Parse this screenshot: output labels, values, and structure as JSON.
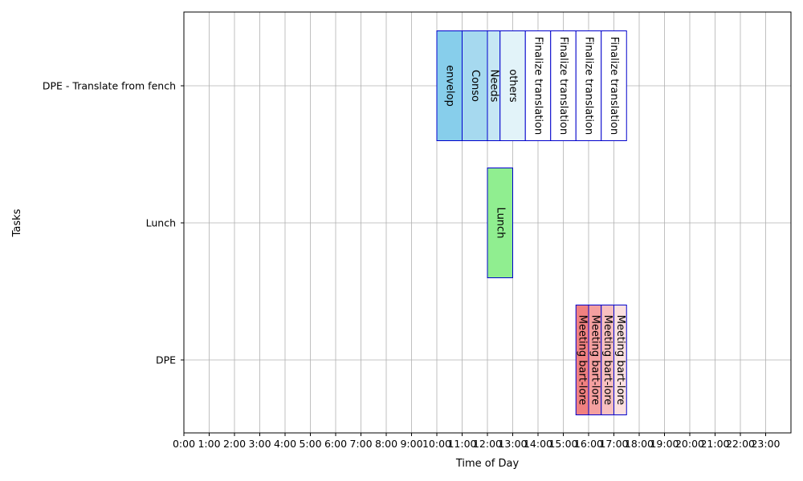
{
  "chart_data": {
    "type": "bar",
    "orientation": "horizontal-timeline",
    "xlabel": "Time of Day",
    "ylabel": "Tasks",
    "xlim": [
      0,
      24
    ],
    "x_ticks": [
      "0:00",
      "1:00",
      "2:00",
      "3:00",
      "4:00",
      "5:00",
      "6:00",
      "7:00",
      "8:00",
      "9:00",
      "10:00",
      "11:00",
      "12:00",
      "13:00",
      "14:00",
      "15:00",
      "16:00",
      "17:00",
      "18:00",
      "19:00",
      "20:00",
      "21:00",
      "22:00",
      "23:00"
    ],
    "y_ticks": [
      "DPE",
      "Lunch",
      "DPE - Translate from fench"
    ],
    "grid": true,
    "bars": [
      {
        "task": "DPE - Translate from fench",
        "start": 10.0,
        "end": 11.0,
        "label": "envelop",
        "color": "#87ceeb"
      },
      {
        "task": "DPE - Translate from fench",
        "start": 11.0,
        "end": 12.0,
        "label": "Conso",
        "color": "#a6d9ef"
      },
      {
        "task": "DPE - Translate from fench",
        "start": 12.0,
        "end": 12.5,
        "label": "Needs",
        "color": "#c6e7f4"
      },
      {
        "task": "DPE - Translate from fench",
        "start": 12.5,
        "end": 13.5,
        "label": "others",
        "color": "#e2f3f9"
      },
      {
        "task": "DPE - Translate from fench",
        "start": 13.5,
        "end": 14.5,
        "label": "Finalize translation",
        "color": "#ffffff"
      },
      {
        "task": "DPE - Translate from fench",
        "start": 14.5,
        "end": 15.5,
        "label": "Finalize translation",
        "color": "#ffffff"
      },
      {
        "task": "DPE - Translate from fench",
        "start": 15.5,
        "end": 16.5,
        "label": "Finalize translation",
        "color": "#ffffff"
      },
      {
        "task": "DPE - Translate from fench",
        "start": 16.5,
        "end": 17.5,
        "label": "Finalize translation",
        "color": "#ffffff"
      },
      {
        "task": "Lunch",
        "start": 12.0,
        "end": 13.0,
        "label": "Lunch",
        "color": "#90ee90"
      },
      {
        "task": "DPE",
        "start": 15.5,
        "end": 16.0,
        "label": "Meeting bart-lore",
        "color": "#f08080"
      },
      {
        "task": "DPE",
        "start": 16.0,
        "end": 16.5,
        "label": "Meeting bart-lore",
        "color": "#f4a0a0"
      },
      {
        "task": "DPE",
        "start": 16.5,
        "end": 17.0,
        "label": "Meeting bart-lore",
        "color": "#f8c0c0"
      },
      {
        "task": "DPE",
        "start": 17.0,
        "end": 17.5,
        "label": "Meeting bart-lore",
        "color": "#fbe0e0"
      }
    ]
  }
}
